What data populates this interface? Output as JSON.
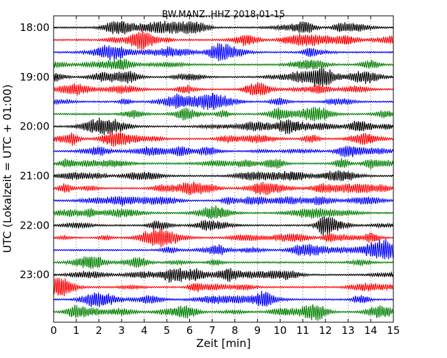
{
  "chart_data": {
    "type": "line",
    "title": "BW.MANZ..HHZ 2018-01-15",
    "xlabel": "Zeit  [min]",
    "ylabel": "UTC (Lokalzeit = UTC + 01:00)",
    "xlim": [
      0,
      15
    ],
    "x_ticks": [
      "0",
      "1",
      "2",
      "3",
      "4",
      "5",
      "6",
      "7",
      "8",
      "9",
      "10",
      "11",
      "12",
      "13",
      "14",
      "15"
    ],
    "y_ticks": [
      "18:00",
      "19:00",
      "20:00",
      "21:00",
      "22:00",
      "23:00"
    ],
    "grid": "vertical dotted",
    "trace_minutes": 15,
    "trace_colors": [
      "#000000",
      "#ff0000",
      "#0000ff",
      "#008000"
    ],
    "traces": [
      {
        "start": "18:00",
        "color": "#000000"
      },
      {
        "start": "18:15",
        "color": "#ff0000"
      },
      {
        "start": "18:30",
        "color": "#0000ff"
      },
      {
        "start": "18:45",
        "color": "#008000"
      },
      {
        "start": "19:00",
        "color": "#000000"
      },
      {
        "start": "19:15",
        "color": "#ff0000"
      },
      {
        "start": "19:30",
        "color": "#0000ff"
      },
      {
        "start": "19:45",
        "color": "#008000"
      },
      {
        "start": "20:00",
        "color": "#000000"
      },
      {
        "start": "20:15",
        "color": "#ff0000"
      },
      {
        "start": "20:30",
        "color": "#0000ff"
      },
      {
        "start": "20:45",
        "color": "#008000"
      },
      {
        "start": "21:00",
        "color": "#000000"
      },
      {
        "start": "21:15",
        "color": "#ff0000"
      },
      {
        "start": "21:30",
        "color": "#0000ff"
      },
      {
        "start": "21:45",
        "color": "#008000"
      },
      {
        "start": "22:00",
        "color": "#000000"
      },
      {
        "start": "22:15",
        "color": "#ff0000"
      },
      {
        "start": "22:30",
        "color": "#0000ff"
      },
      {
        "start": "22:45",
        "color": "#008000"
      },
      {
        "start": "23:00",
        "color": "#000000"
      },
      {
        "start": "23:15",
        "color": "#ff0000"
      },
      {
        "start": "23:30",
        "color": "#0000ff"
      },
      {
        "start": "23:45",
        "color": "#008000"
      }
    ]
  }
}
